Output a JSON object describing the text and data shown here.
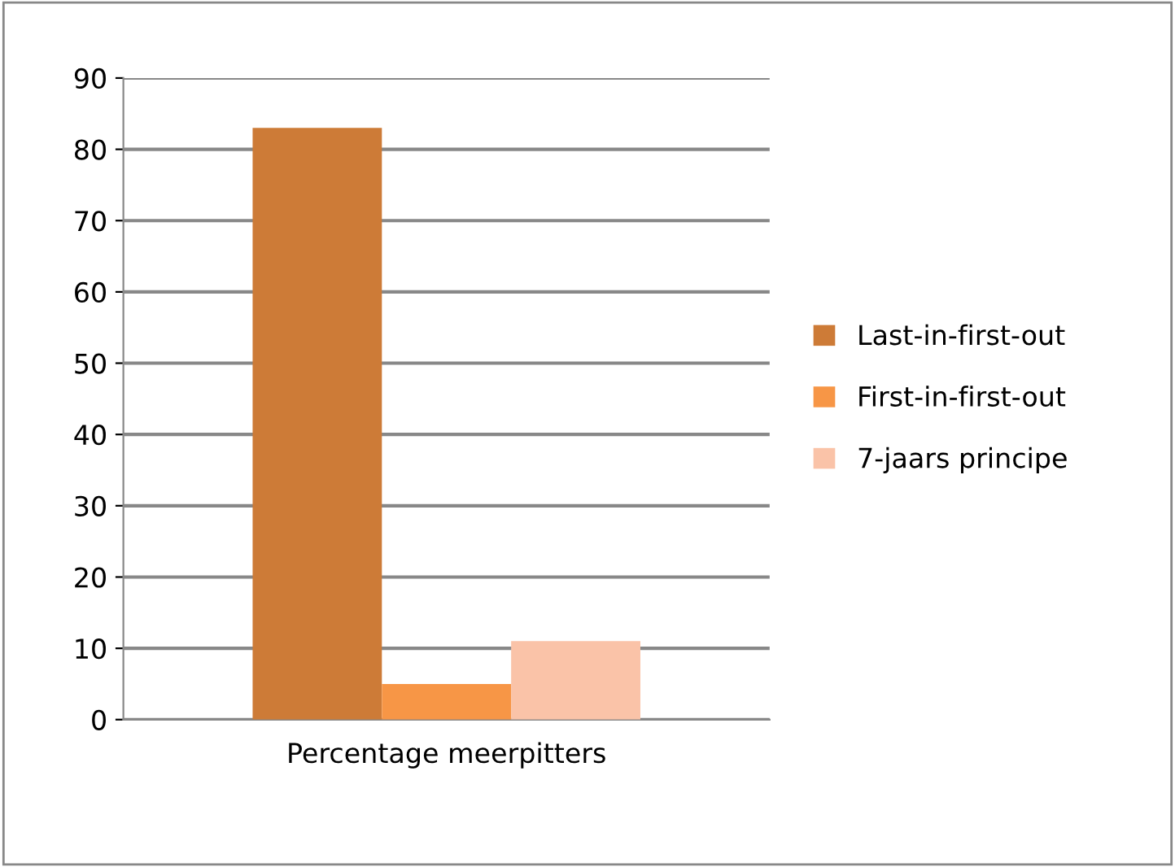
{
  "chart_data": {
    "type": "bar",
    "categories": [
      "Percentage meerpitters"
    ],
    "series": [
      {
        "name": "Last-in-first-out",
        "color": "#cd7b37",
        "values": [
          83
        ]
      },
      {
        "name": "First-in-first-out",
        "color": "#f79646",
        "values": [
          5
        ]
      },
      {
        "name": "7-jaars principe",
        "color": "#fac3a8",
        "values": [
          11
        ]
      }
    ],
    "ylim": [
      0,
      90
    ],
    "yticks": [
      0,
      10,
      20,
      30,
      40,
      50,
      60,
      70,
      80,
      90
    ],
    "grid": "y",
    "legend": "right"
  }
}
